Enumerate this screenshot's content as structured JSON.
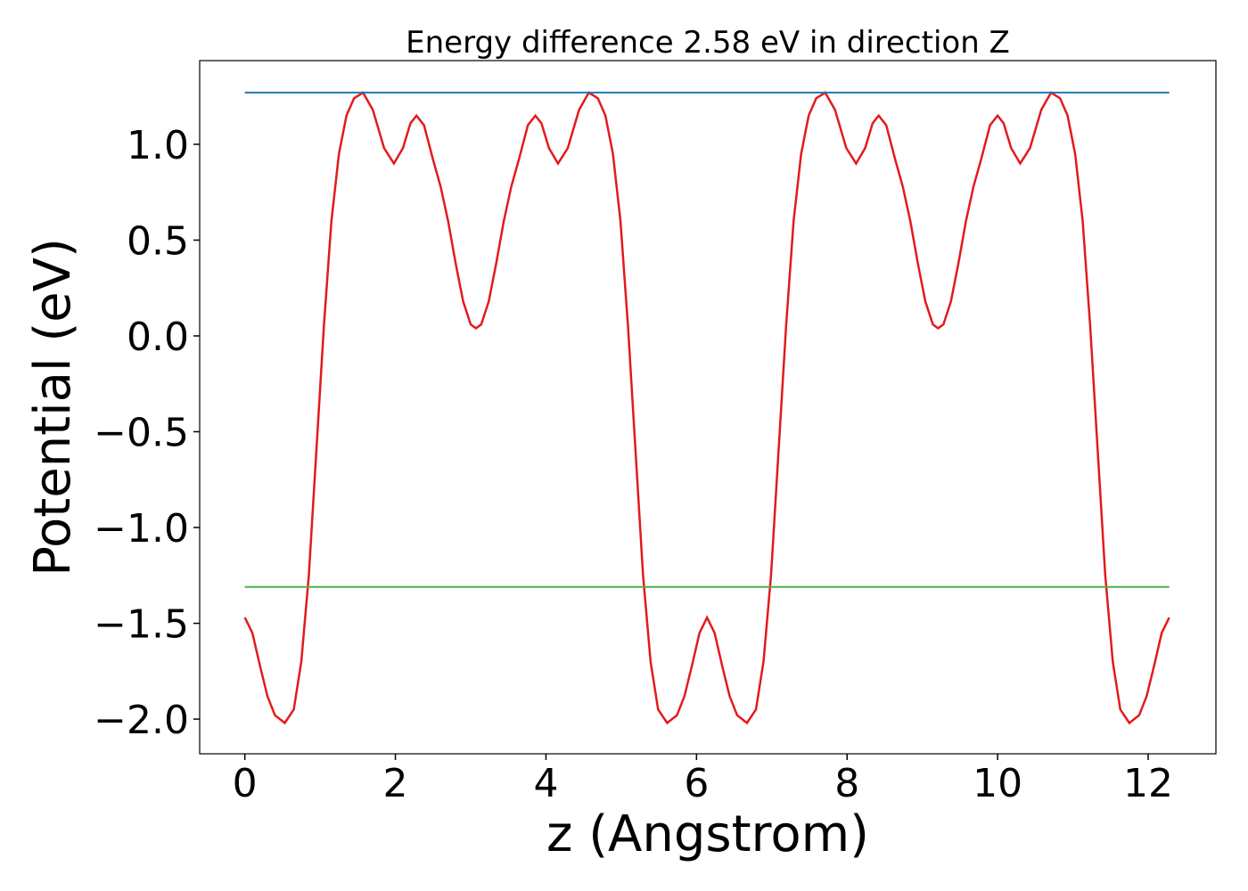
{
  "chart_data": {
    "type": "line",
    "title": "Energy difference 2.58 eV in direction Z",
    "xlabel": "z (Angstrom)",
    "ylabel": "Potential (eV)",
    "xlim": [
      -0.6,
      12.9
    ],
    "ylim": [
      -2.181,
      1.437
    ],
    "xticks": [
      0,
      2,
      4,
      6,
      8,
      10,
      12
    ],
    "yticks": [
      {
        "value": 1.0,
        "label": "1.0"
      },
      {
        "value": 0.5,
        "label": "0.5"
      },
      {
        "value": 0.0,
        "label": "0.0"
      },
      {
        "value": -0.5,
        "label": "−0.5"
      },
      {
        "value": -1.0,
        "label": "−1.0"
      },
      {
        "value": -1.5,
        "label": "−1.5"
      },
      {
        "value": -2.0,
        "label": "−2.0"
      }
    ],
    "grid": false,
    "series": [
      {
        "color": "#e31a1c",
        "x": [
          0,
          0.1,
          0.2,
          0.3,
          0.4,
          0.53,
          0.65,
          0.75,
          0.85,
          0.95,
          1.05,
          1.15,
          1.25,
          1.35,
          1.45,
          1.57,
          1.7,
          1.85,
          1.98,
          2.1,
          2.2,
          2.28,
          2.38,
          2.5,
          2.6,
          2.7,
          2.8,
          2.9,
          3.0,
          3.07,
          3.14,
          3.24,
          3.34,
          3.44,
          3.54,
          3.64,
          3.76,
          3.86,
          3.94,
          4.04,
          4.16,
          4.29,
          4.44,
          4.57,
          4.69,
          4.79,
          4.89,
          4.99,
          5.09,
          5.19,
          5.29,
          5.39,
          5.49,
          5.61,
          5.74,
          5.84,
          5.94,
          6.04,
          6.14,
          6.24,
          6.34,
          6.44,
          6.54,
          6.67,
          6.79,
          6.89,
          6.99,
          7.09,
          7.19,
          7.29,
          7.39,
          7.49,
          7.59,
          7.71,
          7.84,
          7.99,
          8.12,
          8.24,
          8.34,
          8.42,
          8.52,
          8.64,
          8.74,
          8.84,
          8.94,
          9.04,
          9.14,
          9.21,
          9.28,
          9.38,
          9.48,
          9.58,
          9.68,
          9.78,
          9.9,
          10.0,
          10.08,
          10.18,
          10.3,
          10.43,
          10.58,
          10.71,
          10.83,
          10.93,
          11.03,
          11.13,
          11.23,
          11.33,
          11.43,
          11.53,
          11.63,
          11.75,
          11.88,
          11.98,
          12.08,
          12.18,
          12.28
        ],
        "values": [
          -1.47,
          -1.55,
          -1.72,
          -1.88,
          -1.98,
          -2.02,
          -1.95,
          -1.7,
          -1.25,
          -0.6,
          0.05,
          0.6,
          0.95,
          1.15,
          1.24,
          1.27,
          1.18,
          0.98,
          0.9,
          0.98,
          1.11,
          1.15,
          1.1,
          0.92,
          0.78,
          0.6,
          0.38,
          0.18,
          0.06,
          0.04,
          0.06,
          0.18,
          0.38,
          0.6,
          0.78,
          0.92,
          1.1,
          1.15,
          1.11,
          0.98,
          0.9,
          0.98,
          1.18,
          1.27,
          1.24,
          1.15,
          0.95,
          0.6,
          0.05,
          -0.6,
          -1.25,
          -1.7,
          -1.95,
          -2.02,
          -1.98,
          -1.88,
          -1.72,
          -1.55,
          -1.47,
          -1.55,
          -1.72,
          -1.88,
          -1.98,
          -2.02,
          -1.95,
          -1.7,
          -1.25,
          -0.6,
          0.05,
          0.6,
          0.95,
          1.15,
          1.24,
          1.27,
          1.18,
          0.98,
          0.9,
          0.98,
          1.11,
          1.15,
          1.1,
          0.92,
          0.78,
          0.6,
          0.38,
          0.18,
          0.06,
          0.04,
          0.06,
          0.18,
          0.38,
          0.6,
          0.78,
          0.92,
          1.1,
          1.15,
          1.11,
          0.98,
          0.9,
          0.98,
          1.18,
          1.27,
          1.24,
          1.15,
          0.95,
          0.6,
          0.05,
          -0.6,
          -1.25,
          -1.7,
          -1.95,
          -2.02,
          -1.98,
          -1.88,
          -1.72,
          -1.55,
          -1.47
        ]
      },
      {
        "color": "#1f77b4",
        "x": [
          0,
          12.28
        ],
        "values": [
          1.27,
          1.27
        ]
      },
      {
        "color": "#4daf4a",
        "x": [
          0,
          12.28
        ],
        "values": [
          -1.31,
          -1.31
        ]
      }
    ]
  }
}
